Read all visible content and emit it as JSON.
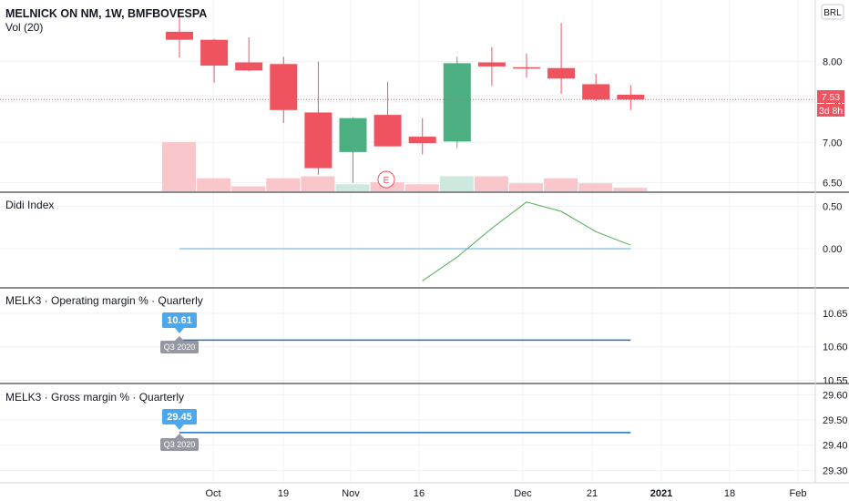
{
  "header": {
    "symbol": "MELNICK ON NM, 1W, BMFBOVESPA",
    "volume_label": "Vol (20)",
    "currency_button": "BRL"
  },
  "price_badges": {
    "last_price": "7.53",
    "countdown": "3d 8h"
  },
  "earnings_marker": "E",
  "colors": {
    "up": "#4caf82",
    "down": "#ef5360",
    "vol_up": "#cde8dc",
    "vol_down": "#f9c7cb",
    "didi_line": "#4caf50",
    "didi_zero": "#5ba8e0",
    "margin_line": "#1c72c4",
    "callout": "#4aa8f0",
    "grid": "#eef0f3",
    "separator": "#131722"
  },
  "chart_data": [
    {
      "type": "candlestick",
      "title": "MELNICK ON NM, 1W, BMFBOVESPA",
      "x_ticks": [
        "Oct",
        "19",
        "Nov",
        "16",
        "Dec",
        "21",
        "2021",
        "18",
        "Feb"
      ],
      "y_ticks": [
        "8.00",
        "7.50",
        "7.00",
        "6.50"
      ],
      "ylim": [
        6.45,
        8.65
      ],
      "candles": [
        {
          "o": 8.37,
          "h": 8.58,
          "l": 8.05,
          "c": 8.27
        },
        {
          "o": 8.27,
          "h": 8.28,
          "l": 7.74,
          "c": 7.95
        },
        {
          "o": 7.99,
          "h": 8.3,
          "l": 7.88,
          "c": 7.89
        },
        {
          "o": 7.97,
          "h": 8.06,
          "l": 7.24,
          "c": 7.4
        },
        {
          "o": 7.37,
          "h": 8.0,
          "l": 6.6,
          "c": 6.68
        },
        {
          "o": 6.88,
          "h": 7.31,
          "l": 6.5,
          "c": 7.3
        },
        {
          "o": 7.34,
          "h": 7.75,
          "l": 6.95,
          "c": 6.95
        },
        {
          "o": 7.07,
          "h": 7.3,
          "l": 6.85,
          "c": 6.99
        },
        {
          "o": 7.01,
          "h": 8.06,
          "l": 6.93,
          "c": 7.98
        },
        {
          "o": 7.99,
          "h": 8.18,
          "l": 7.7,
          "c": 7.94
        },
        {
          "o": 7.93,
          "h": 8.1,
          "l": 7.8,
          "c": 7.92
        },
        {
          "o": 7.92,
          "h": 8.48,
          "l": 7.6,
          "c": 7.79
        },
        {
          "o": 7.72,
          "h": 7.85,
          "l": 7.51,
          "c": 7.53
        },
        {
          "o": 7.59,
          "h": 7.71,
          "l": 7.4,
          "c": 7.53
        }
      ],
      "volume": [
        0.98,
        0.26,
        0.1,
        0.26,
        0.3,
        0.14,
        0.18,
        0.14,
        0.3,
        0.3,
        0.16,
        0.26,
        0.16,
        0.07
      ],
      "last_price": 7.53
    },
    {
      "type": "line",
      "title": "Didi Index",
      "y_ticks": [
        "0.50",
        "0.00"
      ],
      "ylim": [
        -0.42,
        0.58
      ],
      "x_index": [
        7,
        8,
        9,
        10,
        11,
        12,
        13
      ],
      "values": [
        -0.38,
        -0.1,
        0.24,
        0.55,
        0.44,
        0.2,
        0.04
      ],
      "zero_line": {
        "from_index": 0,
        "to_index": 13,
        "value": 0.0
      }
    },
    {
      "type": "line",
      "title": "MELK3 · Operating margin % · Quarterly",
      "y_ticks": [
        "10.65",
        "10.60",
        "10.55"
      ],
      "ylim": [
        10.545,
        10.68
      ],
      "value": 10.61,
      "callout_value": "10.61",
      "period": "Q3 2020"
    },
    {
      "type": "line",
      "title": "MELK3 · Gross margin % · Quarterly",
      "y_ticks": [
        "29.60",
        "29.50",
        "29.40",
        "29.30"
      ],
      "ylim": [
        29.28,
        29.63
      ],
      "value": 29.45,
      "callout_value": "29.45",
      "period": "Q3 2020"
    }
  ]
}
